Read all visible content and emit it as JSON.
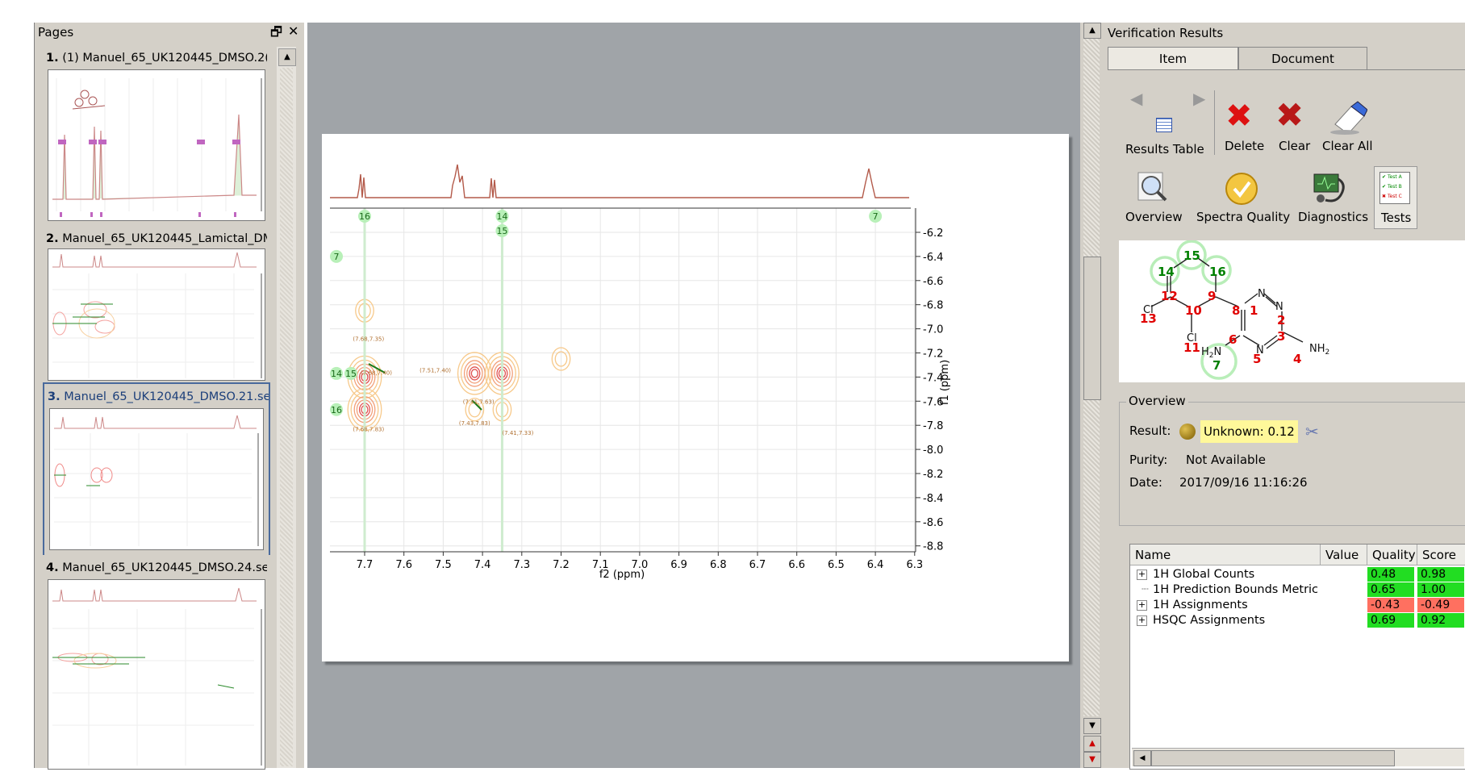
{
  "pages_panel": {
    "title": "Pages",
    "items": [
      {
        "num": "1.",
        "label": "(1) Manuel_65_UK120445_DMSO.2("
      },
      {
        "num": "2.",
        "label": "Manuel_65_UK120445_Lamictal_DM"
      },
      {
        "num": "3.",
        "label": "Manuel_65_UK120445_DMSO.21.se"
      },
      {
        "num": "4.",
        "label": "Manuel_65_UK120445_DMSO.24.se"
      }
    ]
  },
  "spectrum": {
    "x_axis_label": "f2 (ppm)",
    "y_axis_label": "f1 (ppm)",
    "x_ticks": [
      "7.7",
      "7.6",
      "7.5",
      "7.4",
      "7.3",
      "7.2",
      "7.1",
      "7.0",
      "6.9",
      "6.8",
      "6.7",
      "6.6",
      "6.5",
      "6.4",
      "6.3"
    ],
    "y_ticks": [
      "6.2",
      "6.4",
      "6.6",
      "6.8",
      "7.0",
      "7.2",
      "7.4",
      "7.6",
      "7.8",
      "8.0",
      "8.2",
      "8.4",
      "8.6",
      "8.8"
    ],
    "top_markers": [
      {
        "label": "16",
        "ppm": 7.7
      },
      {
        "label": "14",
        "ppm": 7.35
      },
      {
        "label": "15",
        "ppm": 7.35
      },
      {
        "label": "7",
        "ppm": 6.4
      }
    ],
    "left_markers": [
      {
        "label": "7",
        "ppm": 6.4
      },
      {
        "label": "14",
        "ppm": 7.37
      },
      {
        "label": "15",
        "ppm": 7.37
      },
      {
        "label": "16",
        "ppm": 7.67
      }
    ],
    "peak_labels": [
      {
        "text": "(7.68,7.35)",
        "x": 7.73,
        "y": 7.1
      },
      {
        "text": "(7.68,7.40)",
        "x": 7.71,
        "y": 7.38
      },
      {
        "text": "(7.51,7.40)",
        "x": 7.56,
        "y": 7.36
      },
      {
        "text": "(7.41,7.63)",
        "x": 7.45,
        "y": 7.62
      },
      {
        "text": "(7.68,7.83)",
        "x": 7.73,
        "y": 7.85
      },
      {
        "text": "(7.43,7.83)",
        "x": 7.46,
        "y": 7.8
      },
      {
        "text": "(7.41,7.33)",
        "x": 7.35,
        "y": 7.88
      }
    ],
    "contour_peaks": [
      {
        "x": 7.7,
        "y": 7.4,
        "strong": true
      },
      {
        "x": 7.7,
        "y": 7.67,
        "strong": true
      },
      {
        "x": 7.42,
        "y": 7.37,
        "strong": true
      },
      {
        "x": 7.35,
        "y": 7.37,
        "strong": true
      },
      {
        "x": 7.42,
        "y": 7.67,
        "strong": false
      },
      {
        "x": 7.35,
        "y": 7.67,
        "strong": false
      },
      {
        "x": 7.2,
        "y": 7.25,
        "strong": false
      },
      {
        "x": 7.7,
        "y": 6.85,
        "strong": false
      }
    ]
  },
  "verification": {
    "title": "Verification Results",
    "tabs": [
      "Item",
      "Document"
    ],
    "toolbar": {
      "results_table": "Results Table",
      "delete": "Delete",
      "clear": "Clear",
      "clear_all": "Clear All",
      "overview": "Overview",
      "spectra_quality": "Spectra Quality",
      "diagnostics": "Diagnostics",
      "tests": "Tests"
    },
    "tests_icon_lines": [
      "Test A",
      "Test B",
      "Test C"
    ],
    "molecule": {
      "atoms": [
        "15",
        "14",
        "16",
        "12",
        "9",
        "8",
        "1",
        "2",
        "3",
        "4",
        "5",
        "6",
        "10",
        "11",
        "13",
        "7"
      ],
      "elements": [
        "Cl",
        "Cl",
        "N",
        "N",
        "N",
        "N",
        "NH2",
        "H2N"
      ]
    },
    "overview": {
      "legend": "Overview",
      "result_label": "Result:",
      "result_value": "Unknown: 0.12",
      "purity_label": "Purity:",
      "purity_value": "Not Available",
      "date_label": "Date:",
      "date_value": "2017/09/16 11:16:26"
    },
    "table": {
      "headers": [
        "Name",
        "Value",
        "Quality",
        "Score"
      ],
      "rows": [
        {
          "name": "1H Global Counts",
          "expandable": true,
          "value": "",
          "quality": "0.48",
          "score": "0.98",
          "quality_color": "#22dd22",
          "score_color": "#22dd22"
        },
        {
          "name": "1H Prediction Bounds Metric",
          "expandable": false,
          "value": "",
          "quality": "0.65",
          "score": "1.00",
          "quality_color": "#22dd22",
          "score_color": "#22dd22"
        },
        {
          "name": "1H Assignments",
          "expandable": true,
          "value": "",
          "quality": "-0.43",
          "score": "-0.49",
          "quality_color": "#ff7060",
          "score_color": "#ff7060"
        },
        {
          "name": "HSQC Assignments",
          "expandable": true,
          "value": "",
          "quality": "0.69",
          "score": "0.92",
          "quality_color": "#22dd22",
          "score_color": "#22dd22"
        }
      ]
    }
  }
}
